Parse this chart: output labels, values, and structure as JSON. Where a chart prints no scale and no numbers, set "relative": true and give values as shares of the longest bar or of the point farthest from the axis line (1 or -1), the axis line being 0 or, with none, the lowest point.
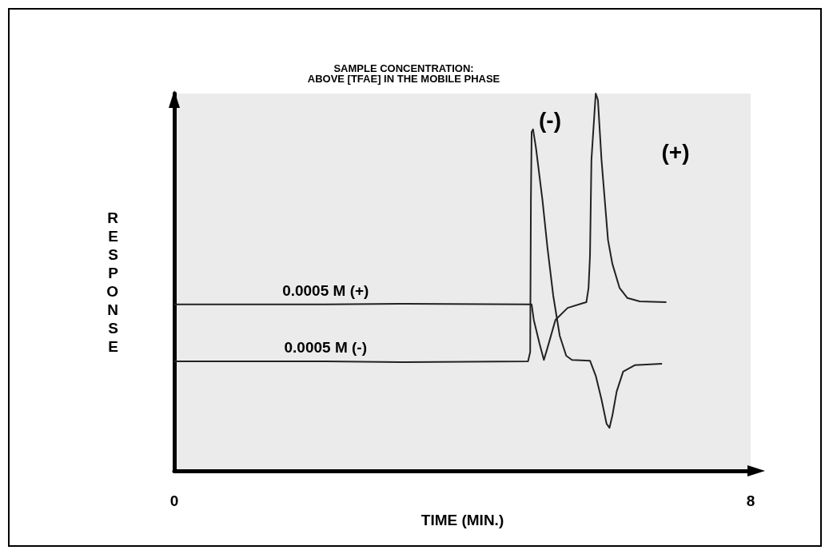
{
  "chart_data": {
    "type": "line",
    "title": "SAMPLE CONCENTRATION:\nABOVE [TFAE] IN THE MOBILE PHASE",
    "xlabel": "TIME (MIN.)",
    "ylabel": "RESPONSE",
    "relative": true,
    "xlim": [
      0,
      8
    ],
    "xticks": [
      0,
      8
    ],
    "grid": false,
    "marker": "none",
    "line_style": "solid",
    "tick_labels": "x",
    "annotations": [
      "(-)",
      "(+)"
    ],
    "series": [
      {
        "name": "0.0005 M (+)",
        "color": "#222222",
        "x": [
          0,
          2.1,
          3.13,
          4.96,
          4.99,
          5.07,
          5.13,
          5.18,
          5.29,
          5.46,
          5.68,
          5.72,
          5.75,
          5.77,
          5.79,
          5.84,
          5.85,
          5.88,
          5.93,
          6.02,
          6.08,
          6.18,
          6.29,
          6.46,
          6.83
        ],
        "values": [
          0.441,
          0.441,
          0.443,
          0.441,
          0.4,
          0.337,
          0.294,
          0.326,
          0.4,
          0.432,
          0.445,
          0.447,
          0.485,
          0.57,
          0.824,
          0.972,
          1,
          0.983,
          0.824,
          0.612,
          0.549,
          0.485,
          0.458,
          0.449,
          0.447
        ]
      },
      {
        "name": "0.0005 M (-)",
        "color": "#222222",
        "x": [
          0,
          2.1,
          3.13,
          4.91,
          4.94,
          4.95,
          4.96,
          4.98,
          5.02,
          5.11,
          5.18,
          5.26,
          5.35,
          5.44,
          5.52,
          5.77,
          5.85,
          5.93,
          6.0,
          6.04,
          6.08,
          6.14,
          6.23,
          6.39,
          6.77
        ],
        "values": [
          0.29,
          0.29,
          0.288,
          0.29,
          0.315,
          0.718,
          0.898,
          0.905,
          0.856,
          0.718,
          0.591,
          0.464,
          0.358,
          0.305,
          0.294,
          0.292,
          0.252,
          0.189,
          0.125,
          0.114,
          0.146,
          0.21,
          0.263,
          0.28,
          0.284
        ]
      }
    ]
  }
}
